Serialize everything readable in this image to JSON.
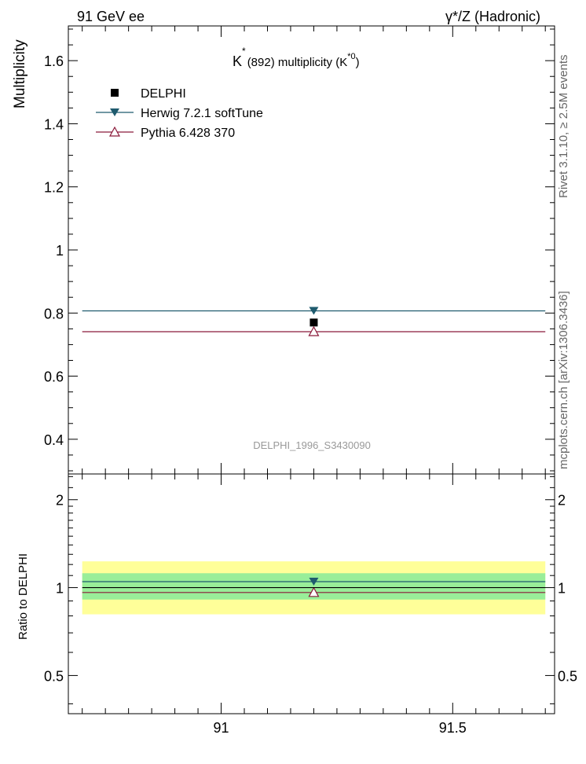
{
  "header": {
    "left": "91 GeV ee",
    "right": "γ*/Z (Hadronic)"
  },
  "side_labels": {
    "rivet": "Rivet 3.1.10, ≥ 2.5M events",
    "mcplots": "mcplots.cern.ch [arXiv:1306.3436]"
  },
  "chart_data": [
    {
      "panel": "main",
      "type": "scatter",
      "title_main": "K",
      "title_sup": "*",
      "title_rest": "(892) multiplicity (K",
      "title_sup2": "*0",
      "title_end": ")",
      "ylabel": "Multiplicity",
      "xlim": [
        90.67,
        91.72
      ],
      "ylim": [
        0.29,
        1.71
      ],
      "yticks": [
        0.4,
        0.6,
        0.8,
        1.0,
        1.2,
        1.4,
        1.6
      ],
      "ytick_labels": [
        "0.4",
        "0.6",
        "0.8",
        "1",
        "1.2",
        "1.4",
        "1.6"
      ],
      "analysis_label": "DELPHI_1996_S3430090",
      "legend": [
        {
          "label": "DELPHI",
          "marker": "square",
          "color": "#000000"
        },
        {
          "label": "Herwig 7.2.1 softTune",
          "marker": "triangle-down",
          "color": "#1f5b6e"
        },
        {
          "label": "Pythia 6.428 370",
          "marker": "triangle-up-open",
          "color": "#8b1a3a"
        }
      ],
      "series": [
        {
          "name": "DELPHI",
          "x": 91.2,
          "y": 0.77,
          "xmin": 90.7,
          "xmax": 91.7
        },
        {
          "name": "Herwig 7.2.1 softTune",
          "x": 91.2,
          "y": 0.807,
          "xmin": 90.7,
          "xmax": 91.7
        },
        {
          "name": "Pythia 6.428 370",
          "x": 91.2,
          "y": 0.741,
          "xmin": 90.7,
          "xmax": 91.7
        }
      ]
    },
    {
      "panel": "ratio",
      "type": "scatter",
      "ylabel": "Ratio to DELPHI",
      "xlim": [
        90.67,
        91.72
      ],
      "ylim": [
        0.37,
        2.45
      ],
      "log_y": true,
      "yticks_major": [
        0.5,
        1,
        2
      ],
      "ytick_labels": [
        "0.5",
        "1",
        "2"
      ],
      "xticks": [
        91,
        91.5
      ],
      "xtick_labels": [
        "91",
        "91.5"
      ],
      "bands": [
        {
          "name": "stat+syst",
          "color": "#ffff99",
          "low": 0.81,
          "high": 1.23
        },
        {
          "name": "stat",
          "color": "#99ee99",
          "low": 0.91,
          "high": 1.12
        }
      ],
      "series": [
        {
          "name": "Herwig 7.2.1 softTune",
          "x": 91.2,
          "y": 1.048,
          "xmin": 90.7,
          "xmax": 91.7
        },
        {
          "name": "Pythia 6.428 370",
          "x": 91.2,
          "y": 0.962,
          "xmin": 90.7,
          "xmax": 91.7
        },
        {
          "name": "DELPHI",
          "x": 91.2,
          "y": 1.0,
          "xmin": 90.7,
          "xmax": 91.7
        }
      ]
    }
  ]
}
